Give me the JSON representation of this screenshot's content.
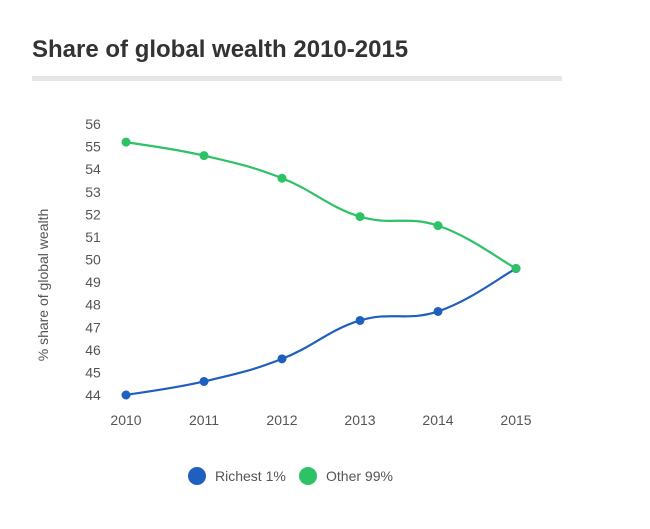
{
  "chart_data": {
    "type": "line",
    "title": "Share of global wealth 2010-2015",
    "xlabel": "",
    "ylabel": "% share of global wealth",
    "x": [
      "2010",
      "2011",
      "2012",
      "2013",
      "2014",
      "2015"
    ],
    "yticks": [
      44,
      45,
      46,
      47,
      48,
      49,
      50,
      51,
      52,
      53,
      54,
      55,
      56
    ],
    "ylim": [
      44,
      56
    ],
    "grid": false,
    "legend_position": "bottom",
    "series": [
      {
        "name": "Richest 1%",
        "color": "#1f5fbf",
        "values": [
          44.0,
          44.6,
          45.6,
          47.3,
          47.7,
          49.6
        ]
      },
      {
        "name": "Other 99%",
        "color": "#2ec266",
        "values": [
          55.2,
          54.6,
          53.6,
          51.9,
          51.5,
          49.6
        ]
      }
    ]
  }
}
